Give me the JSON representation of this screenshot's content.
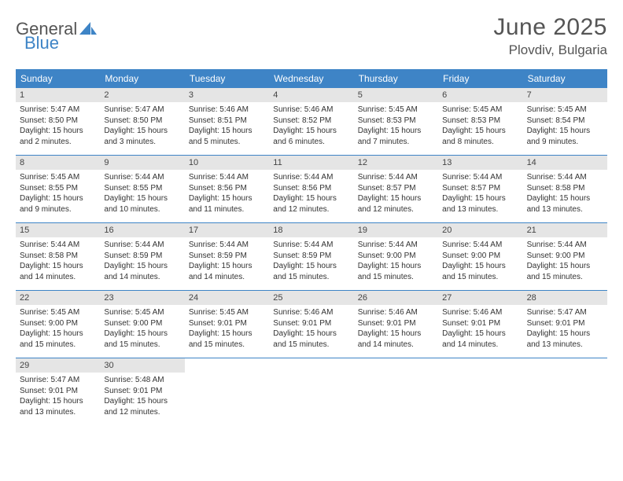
{
  "brand": {
    "word1": "General",
    "word2": "Blue"
  },
  "title": "June 2025",
  "location": "Plovdiv, Bulgaria",
  "colors": {
    "accent": "#3e84c6",
    "header_bg": "#e5e5e5",
    "text": "#333333",
    "title_text": "#555555"
  },
  "dow": [
    "Sunday",
    "Monday",
    "Tuesday",
    "Wednesday",
    "Thursday",
    "Friday",
    "Saturday"
  ],
  "fonts": {
    "dow_size": 12,
    "body_size": 10,
    "title_size": 30,
    "loc_size": 17
  },
  "weeks": [
    [
      {
        "n": "1",
        "sr": "5:47 AM",
        "ss": "8:50 PM",
        "dl": "15 hours and 2 minutes."
      },
      {
        "n": "2",
        "sr": "5:47 AM",
        "ss": "8:50 PM",
        "dl": "15 hours and 3 minutes."
      },
      {
        "n": "3",
        "sr": "5:46 AM",
        "ss": "8:51 PM",
        "dl": "15 hours and 5 minutes."
      },
      {
        "n": "4",
        "sr": "5:46 AM",
        "ss": "8:52 PM",
        "dl": "15 hours and 6 minutes."
      },
      {
        "n": "5",
        "sr": "5:45 AM",
        "ss": "8:53 PM",
        "dl": "15 hours and 7 minutes."
      },
      {
        "n": "6",
        "sr": "5:45 AM",
        "ss": "8:53 PM",
        "dl": "15 hours and 8 minutes."
      },
      {
        "n": "7",
        "sr": "5:45 AM",
        "ss": "8:54 PM",
        "dl": "15 hours and 9 minutes."
      }
    ],
    [
      {
        "n": "8",
        "sr": "5:45 AM",
        "ss": "8:55 PM",
        "dl": "15 hours and 9 minutes."
      },
      {
        "n": "9",
        "sr": "5:44 AM",
        "ss": "8:55 PM",
        "dl": "15 hours and 10 minutes."
      },
      {
        "n": "10",
        "sr": "5:44 AM",
        "ss": "8:56 PM",
        "dl": "15 hours and 11 minutes."
      },
      {
        "n": "11",
        "sr": "5:44 AM",
        "ss": "8:56 PM",
        "dl": "15 hours and 12 minutes."
      },
      {
        "n": "12",
        "sr": "5:44 AM",
        "ss": "8:57 PM",
        "dl": "15 hours and 12 minutes."
      },
      {
        "n": "13",
        "sr": "5:44 AM",
        "ss": "8:57 PM",
        "dl": "15 hours and 13 minutes."
      },
      {
        "n": "14",
        "sr": "5:44 AM",
        "ss": "8:58 PM",
        "dl": "15 hours and 13 minutes."
      }
    ],
    [
      {
        "n": "15",
        "sr": "5:44 AM",
        "ss": "8:58 PM",
        "dl": "15 hours and 14 minutes."
      },
      {
        "n": "16",
        "sr": "5:44 AM",
        "ss": "8:59 PM",
        "dl": "15 hours and 14 minutes."
      },
      {
        "n": "17",
        "sr": "5:44 AM",
        "ss": "8:59 PM",
        "dl": "15 hours and 14 minutes."
      },
      {
        "n": "18",
        "sr": "5:44 AM",
        "ss": "8:59 PM",
        "dl": "15 hours and 15 minutes."
      },
      {
        "n": "19",
        "sr": "5:44 AM",
        "ss": "9:00 PM",
        "dl": "15 hours and 15 minutes."
      },
      {
        "n": "20",
        "sr": "5:44 AM",
        "ss": "9:00 PM",
        "dl": "15 hours and 15 minutes."
      },
      {
        "n": "21",
        "sr": "5:44 AM",
        "ss": "9:00 PM",
        "dl": "15 hours and 15 minutes."
      }
    ],
    [
      {
        "n": "22",
        "sr": "5:45 AM",
        "ss": "9:00 PM",
        "dl": "15 hours and 15 minutes."
      },
      {
        "n": "23",
        "sr": "5:45 AM",
        "ss": "9:00 PM",
        "dl": "15 hours and 15 minutes."
      },
      {
        "n": "24",
        "sr": "5:45 AM",
        "ss": "9:01 PM",
        "dl": "15 hours and 15 minutes."
      },
      {
        "n": "25",
        "sr": "5:46 AM",
        "ss": "9:01 PM",
        "dl": "15 hours and 15 minutes."
      },
      {
        "n": "26",
        "sr": "5:46 AM",
        "ss": "9:01 PM",
        "dl": "15 hours and 14 minutes."
      },
      {
        "n": "27",
        "sr": "5:46 AM",
        "ss": "9:01 PM",
        "dl": "15 hours and 14 minutes."
      },
      {
        "n": "28",
        "sr": "5:47 AM",
        "ss": "9:01 PM",
        "dl": "15 hours and 13 minutes."
      }
    ],
    [
      {
        "n": "29",
        "sr": "5:47 AM",
        "ss": "9:01 PM",
        "dl": "15 hours and 13 minutes."
      },
      {
        "n": "30",
        "sr": "5:48 AM",
        "ss": "9:01 PM",
        "dl": "15 hours and 12 minutes."
      },
      null,
      null,
      null,
      null,
      null
    ]
  ],
  "labels": {
    "sunrise": "Sunrise:",
    "sunset": "Sunset:",
    "daylight": "Daylight:"
  }
}
